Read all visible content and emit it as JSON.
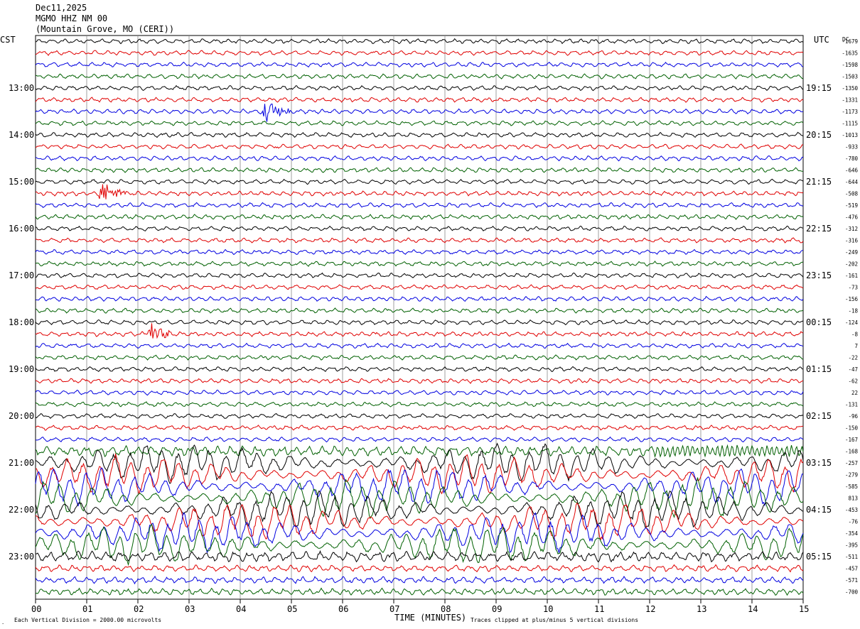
{
  "header": {
    "date": "Dec11,2025",
    "station": "MGMO HHZ NM 00",
    "location": "(Mountain Grove, MO (CERI))"
  },
  "chart_data": {
    "type": "line",
    "title": "",
    "xlabel": "TIME (MINUTES)",
    "ylabel": "",
    "x_range": [
      0,
      15
    ],
    "x_ticks": [
      "00",
      "01",
      "02",
      "03",
      "04",
      "05",
      "06",
      "07",
      "08",
      "09",
      "10",
      "11",
      "12",
      "13",
      "14",
      "15"
    ],
    "left_timezone": "CST",
    "right_timezone": "UTC",
    "dc_header": "DC",
    "left_hour_labels": [
      "13:00",
      "14:00",
      "15:00",
      "16:00",
      "17:00",
      "18:00",
      "19:00",
      "20:00",
      "21:00",
      "22:00",
      "23:00"
    ],
    "right_hour_labels": [
      "19:15",
      "20:15",
      "21:15",
      "22:15",
      "23:15",
      "00:15",
      "01:15",
      "02:15",
      "03:15",
      "04:15",
      "05:15"
    ],
    "hour_label_first_trace": 4,
    "trace_count": 48,
    "trace_colors": [
      "#000000",
      "#e00000",
      "#0000e0",
      "#006000"
    ],
    "dc_offsets": [
      -1679,
      -1635,
      -1598,
      -1503,
      -1350,
      -1331,
      -1173,
      -1115,
      -1013,
      -933,
      -780,
      -646,
      -644,
      -508,
      -519,
      -476,
      -312,
      -316,
      -249,
      -202,
      -161,
      -73,
      -156,
      -18,
      -124,
      -8,
      7,
      -22,
      -47,
      -62,
      22,
      -131,
      -96,
      -150,
      -167,
      -168,
      -257,
      -279,
      -585,
      813,
      -453,
      -76,
      -354,
      -395,
      -511,
      -457,
      -571,
      -700
    ],
    "grid": "vertical minute lines",
    "events": [
      {
        "trace": 6,
        "minute": 4.55,
        "note": "local event burst"
      },
      {
        "trace": 13,
        "minute": 1.35,
        "note": "local event burst"
      },
      {
        "trace": 25,
        "minute": 2.25,
        "note": "small event"
      },
      {
        "trace": 35,
        "minute": 12.25,
        "note": "large onset"
      }
    ]
  },
  "footer": {
    "scale_note": "Each Vertical Division = 2000.00 microvolts",
    "clip_note": "Traces clipped at plus/minus 5 vertical divisions"
  },
  "legend_colors": [
    "#000000",
    "#e00000",
    "#0000e0",
    "#006000"
  ]
}
